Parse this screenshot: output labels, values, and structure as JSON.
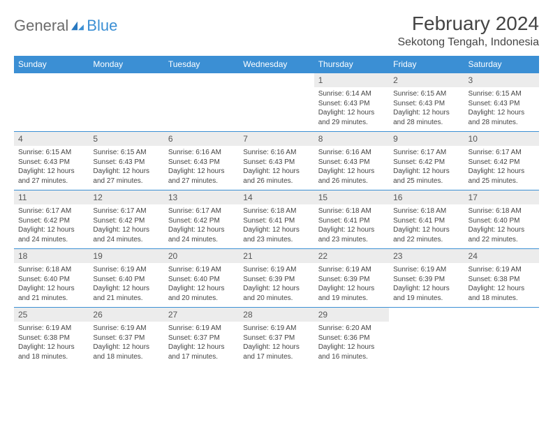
{
  "logo": {
    "text1": "General",
    "text2": "Blue"
  },
  "title": "February 2024",
  "location": "Sekotong Tengah, Indonesia",
  "colors": {
    "header_bg": "#3b8fd4",
    "header_text": "#ffffff",
    "daynum_bg": "#ececec",
    "border": "#3b8fd4",
    "body_text": "#444444"
  },
  "weekdays": [
    "Sunday",
    "Monday",
    "Tuesday",
    "Wednesday",
    "Thursday",
    "Friday",
    "Saturday"
  ],
  "weeks": [
    [
      null,
      null,
      null,
      null,
      {
        "n": "1",
        "sr": "6:14 AM",
        "ss": "6:43 PM",
        "dl": "12 hours and 29 minutes."
      },
      {
        "n": "2",
        "sr": "6:15 AM",
        "ss": "6:43 PM",
        "dl": "12 hours and 28 minutes."
      },
      {
        "n": "3",
        "sr": "6:15 AM",
        "ss": "6:43 PM",
        "dl": "12 hours and 28 minutes."
      }
    ],
    [
      {
        "n": "4",
        "sr": "6:15 AM",
        "ss": "6:43 PM",
        "dl": "12 hours and 27 minutes."
      },
      {
        "n": "5",
        "sr": "6:15 AM",
        "ss": "6:43 PM",
        "dl": "12 hours and 27 minutes."
      },
      {
        "n": "6",
        "sr": "6:16 AM",
        "ss": "6:43 PM",
        "dl": "12 hours and 27 minutes."
      },
      {
        "n": "7",
        "sr": "6:16 AM",
        "ss": "6:43 PM",
        "dl": "12 hours and 26 minutes."
      },
      {
        "n": "8",
        "sr": "6:16 AM",
        "ss": "6:43 PM",
        "dl": "12 hours and 26 minutes."
      },
      {
        "n": "9",
        "sr": "6:17 AM",
        "ss": "6:42 PM",
        "dl": "12 hours and 25 minutes."
      },
      {
        "n": "10",
        "sr": "6:17 AM",
        "ss": "6:42 PM",
        "dl": "12 hours and 25 minutes."
      }
    ],
    [
      {
        "n": "11",
        "sr": "6:17 AM",
        "ss": "6:42 PM",
        "dl": "12 hours and 24 minutes."
      },
      {
        "n": "12",
        "sr": "6:17 AM",
        "ss": "6:42 PM",
        "dl": "12 hours and 24 minutes."
      },
      {
        "n": "13",
        "sr": "6:17 AM",
        "ss": "6:42 PM",
        "dl": "12 hours and 24 minutes."
      },
      {
        "n": "14",
        "sr": "6:18 AM",
        "ss": "6:41 PM",
        "dl": "12 hours and 23 minutes."
      },
      {
        "n": "15",
        "sr": "6:18 AM",
        "ss": "6:41 PM",
        "dl": "12 hours and 23 minutes."
      },
      {
        "n": "16",
        "sr": "6:18 AM",
        "ss": "6:41 PM",
        "dl": "12 hours and 22 minutes."
      },
      {
        "n": "17",
        "sr": "6:18 AM",
        "ss": "6:40 PM",
        "dl": "12 hours and 22 minutes."
      }
    ],
    [
      {
        "n": "18",
        "sr": "6:18 AM",
        "ss": "6:40 PM",
        "dl": "12 hours and 21 minutes."
      },
      {
        "n": "19",
        "sr": "6:19 AM",
        "ss": "6:40 PM",
        "dl": "12 hours and 21 minutes."
      },
      {
        "n": "20",
        "sr": "6:19 AM",
        "ss": "6:40 PM",
        "dl": "12 hours and 20 minutes."
      },
      {
        "n": "21",
        "sr": "6:19 AM",
        "ss": "6:39 PM",
        "dl": "12 hours and 20 minutes."
      },
      {
        "n": "22",
        "sr": "6:19 AM",
        "ss": "6:39 PM",
        "dl": "12 hours and 19 minutes."
      },
      {
        "n": "23",
        "sr": "6:19 AM",
        "ss": "6:39 PM",
        "dl": "12 hours and 19 minutes."
      },
      {
        "n": "24",
        "sr": "6:19 AM",
        "ss": "6:38 PM",
        "dl": "12 hours and 18 minutes."
      }
    ],
    [
      {
        "n": "25",
        "sr": "6:19 AM",
        "ss": "6:38 PM",
        "dl": "12 hours and 18 minutes."
      },
      {
        "n": "26",
        "sr": "6:19 AM",
        "ss": "6:37 PM",
        "dl": "12 hours and 18 minutes."
      },
      {
        "n": "27",
        "sr": "6:19 AM",
        "ss": "6:37 PM",
        "dl": "12 hours and 17 minutes."
      },
      {
        "n": "28",
        "sr": "6:19 AM",
        "ss": "6:37 PM",
        "dl": "12 hours and 17 minutes."
      },
      {
        "n": "29",
        "sr": "6:20 AM",
        "ss": "6:36 PM",
        "dl": "12 hours and 16 minutes."
      },
      null,
      null
    ]
  ],
  "labels": {
    "sunrise": "Sunrise: ",
    "sunset": "Sunset: ",
    "daylight": "Daylight: "
  }
}
